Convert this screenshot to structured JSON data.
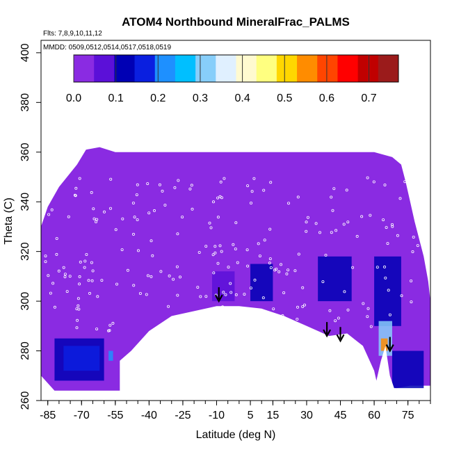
{
  "chart_data": {
    "type": "heatmap",
    "title": "ATOM4 Northbound MineralFrac_PALMS",
    "flights_label": "Flts: 7,8,9,10,11,12",
    "dates_label": "MMDD: 0509,0512,0514,0517,0518,0519",
    "xlabel": "Latitude (deg N)",
    "ylabel": "Theta (C)",
    "xlim": [
      -88,
      85
    ],
    "ylim": [
      260,
      405
    ],
    "x_ticks": [
      "-85",
      "-70",
      "-55",
      "-40",
      "-25",
      "-10",
      "5",
      "15",
      "30",
      "45",
      "60",
      "75"
    ],
    "x_tick_values": [
      -85,
      -70,
      -55,
      -40,
      -25,
      -10,
      5,
      15,
      30,
      45,
      60,
      75
    ],
    "y_ticks": [
      "260",
      "280",
      "300",
      "320",
      "340",
      "360",
      "380",
      "400"
    ],
    "y_tick_values": [
      260,
      280,
      300,
      320,
      340,
      360,
      380,
      400
    ],
    "colorbar": {
      "range": [
        0,
        0.77
      ],
      "tick_values": [
        0.0,
        0.1,
        0.2,
        0.3,
        0.4,
        0.5,
        0.6,
        0.7
      ],
      "tick_labels": [
        "0.0",
        "0.1",
        "0.2",
        "0.3",
        "0.4",
        "0.5",
        "0.6",
        "0.7"
      ],
      "colors": [
        "#8a2be2",
        "#5b10d8",
        "#0000b4",
        "#0a1fe0",
        "#1e90ff",
        "#00bfff",
        "#87cefa",
        "#e0f0ff",
        "#fffad0",
        "#ffff80",
        "#ffd700",
        "#ff8c00",
        "#ff4500",
        "#ff0000",
        "#c00000",
        "#9b1b1b"
      ]
    },
    "background_value": 0.0,
    "high_value_regions": [
      {
        "lat": [
          -82,
          -60
        ],
        "theta": [
          268,
          285
        ],
        "value": 0.13
      },
      {
        "lat": [
          -78,
          -62
        ],
        "theta": [
          272,
          282
        ],
        "value": 0.16
      },
      {
        "lat": [
          -58,
          -56
        ],
        "theta": [
          276,
          280
        ],
        "value": 0.22
      },
      {
        "lat": [
          -12,
          -2
        ],
        "theta": [
          300,
          312
        ],
        "value": 0.09
      },
      {
        "lat": [
          5,
          15
        ],
        "theta": [
          300,
          315
        ],
        "value": 0.1
      },
      {
        "lat": [
          35,
          50
        ],
        "theta": [
          300,
          318
        ],
        "value": 0.1
      },
      {
        "lat": [
          60,
          72
        ],
        "theta": [
          290,
          318
        ],
        "value": 0.11
      },
      {
        "lat": [
          62,
          68
        ],
        "theta": [
          278,
          292
        ],
        "value": 0.3
      },
      {
        "lat": [
          63,
          66
        ],
        "theta": [
          280,
          285
        ],
        "value": 0.55
      },
      {
        "lat": [
          68,
          82
        ],
        "theta": [
          265,
          280
        ],
        "value": 0.12
      }
    ],
    "arrows": [
      {
        "lat": -9,
        "theta": 300
      },
      {
        "lat": 39,
        "theta": 286
      },
      {
        "lat": 45,
        "theta": 284
      },
      {
        "lat": 67,
        "theta": 280
      }
    ]
  }
}
